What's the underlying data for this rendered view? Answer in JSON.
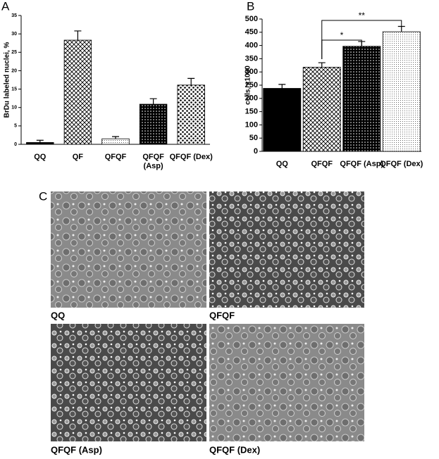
{
  "panel_labels": [
    "A",
    "B",
    "C"
  ],
  "chart_data": [
    {
      "type": "bar",
      "y_label": "BrDu labeled nuclei, %",
      "categories": [
        "QQ",
        "QF",
        "QFQF",
        "QFQF\n(Asp)",
        "QFQF (Dex)"
      ],
      "values": [
        0.5,
        28.3,
        1.5,
        10.9,
        16.1
      ],
      "errors": [
        0.6,
        2.5,
        0.6,
        1.5,
        1.8
      ],
      "patterns": [
        "solid",
        "crosshatch",
        "light-dots",
        "dark-dots",
        "dots"
      ],
      "ylim": [
        0,
        35
      ],
      "yticks": [
        0,
        5,
        10,
        15,
        20,
        25,
        30,
        35
      ]
    },
    {
      "type": "bar",
      "y_label": "cells, x1000",
      "categories": [
        "QQ",
        "QFQF",
        "QFQF (Asp)",
        "QFQF (Dex)"
      ],
      "values": [
        238,
        318,
        397,
        452
      ],
      "errors": [
        15,
        17,
        18,
        20
      ],
      "patterns": [
        "solid",
        "crosshatch",
        "dark-dots",
        "light-dots"
      ],
      "ylim": [
        0,
        500
      ],
      "yticks": [
        0,
        50,
        100,
        150,
        200,
        250,
        300,
        350,
        400,
        450,
        500
      ],
      "annotations": [
        {
          "text": "*",
          "from": "QFQF",
          "to": "QFQF (Asp)"
        },
        {
          "text": "**",
          "from": "QFQF",
          "to": "QFQF (Dex)"
        }
      ]
    }
  ],
  "micrographs": [
    "QQ",
    "QFQF",
    "QFQF (Asp)",
    "QFQF (Dex)"
  ]
}
